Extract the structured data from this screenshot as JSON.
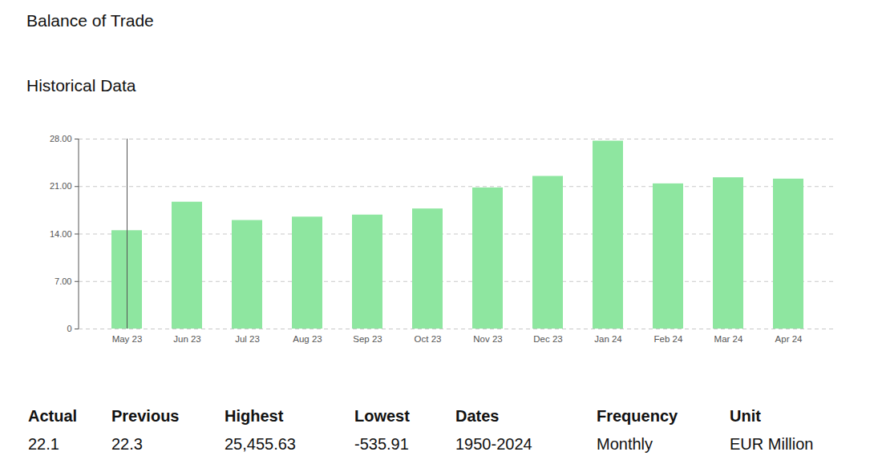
{
  "chart_data": {
    "type": "bar",
    "title": "Balance of Trade",
    "subtitle": "Historical Data",
    "categories": [
      "May 23",
      "Jun 23",
      "Jul 23",
      "Aug 23",
      "Sep 23",
      "Oct 23",
      "Nov 23",
      "Dec 23",
      "Jan 24",
      "Feb 24",
      "Mar 24",
      "Apr 24"
    ],
    "values": [
      14.5,
      18.7,
      16.0,
      16.5,
      16.8,
      17.7,
      20.8,
      22.5,
      27.7,
      21.4,
      22.3,
      22.1
    ],
    "color": "#8ee6a0",
    "ylim": [
      0,
      28
    ],
    "yticks": [
      0,
      {
        "value": 7,
        "label": "7.00"
      },
      {
        "value": 14,
        "label": "14.00"
      },
      {
        "value": 21,
        "label": "21.00"
      },
      {
        "value": 28,
        "label": "28.00"
      }
    ],
    "grid": true
  },
  "summary": {
    "columns": [
      {
        "header": "Actual",
        "value": "22.1"
      },
      {
        "header": "Previous",
        "value": "22.3"
      },
      {
        "header": "Highest",
        "value": "25,455.63"
      },
      {
        "header": "Lowest",
        "value": "-535.91"
      },
      {
        "header": "Dates",
        "value": "1950-2024"
      },
      {
        "header": "Frequency",
        "value": "Monthly"
      },
      {
        "header": "Unit",
        "value": "EUR Million"
      }
    ]
  }
}
